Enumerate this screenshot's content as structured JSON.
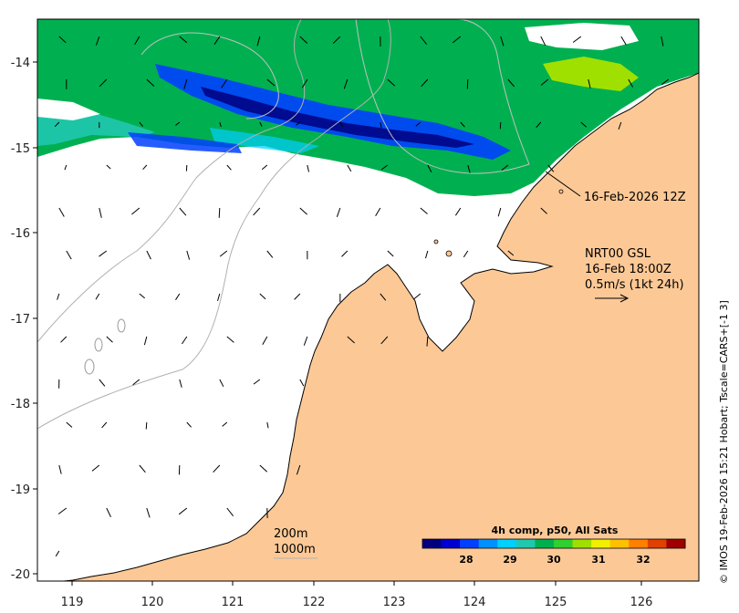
{
  "map": {
    "y_ticks": [
      "-14",
      "-15",
      "-16",
      "-17",
      "-18",
      "-19",
      "-20"
    ],
    "x_ticks": [
      "119",
      "120",
      "121",
      "122",
      "123",
      "124",
      "125",
      "126"
    ]
  },
  "annotations": {
    "analysis_time": "16-Feb-2026 12Z",
    "current_source": "NRT00 GSL",
    "current_time": "16-Feb 18:00Z",
    "arrow_scale": "0.5m/s (1kt 24h)",
    "isobath_200": "200m",
    "isobath_1000": "1000m"
  },
  "colorbar": {
    "title": "4h comp, p50, All Sats",
    "ticks": [
      "28",
      "29",
      "30",
      "31",
      "32"
    ],
    "colors": [
      "#00007f",
      "#0000d0",
      "#0040ff",
      "#0090ff",
      "#00d0ff",
      "#20c8b0",
      "#00b050",
      "#30d030",
      "#a0e000",
      "#f0f000",
      "#ffc000",
      "#ff8000",
      "#e04000",
      "#a00000"
    ]
  },
  "credit": "© IMOS 19-Feb-2026 15:21 Hobart; Tscale=CARS+[-1 3]",
  "colors": {
    "land": "#fcc996",
    "sst_green": "#00b050",
    "sst_blue": "#0040ff",
    "sst_navy": "#00007f",
    "sst_cyan": "#00d0ff"
  }
}
